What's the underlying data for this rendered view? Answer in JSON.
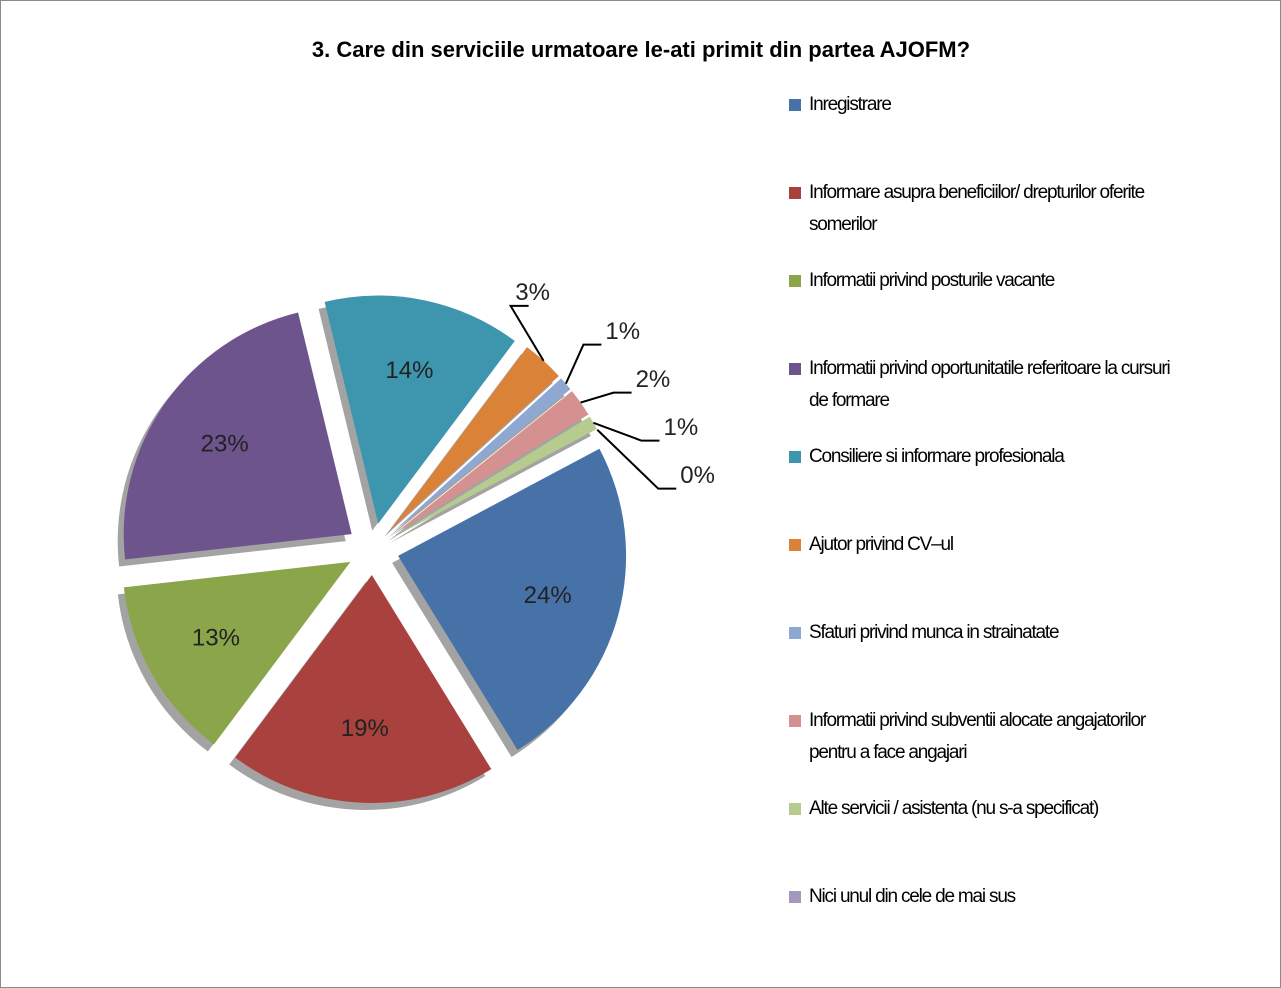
{
  "chart_data": {
    "type": "pie",
    "title": "3. Care din serviciile urmatoare le-ati primit din partea AJOFM?",
    "categories": [
      "Inregistrare",
      "Informare asupra beneficiilor/ drepturilor oferite somerilor",
      "Informatii privind posturile vacante",
      "Informatii privind oportunitatile referitoare la cursuri de formare",
      "Consiliere si informare profesionala",
      "Ajutor privind CV–ul",
      "Sfaturi privind munca in strainatate",
      "Informatii privind subventii alocate angajatorilor pentru a face angajari",
      "Alte servicii / asistenta (nu s-a specificat)",
      "Nici unul din cele de mai sus"
    ],
    "values": [
      24,
      19,
      13,
      23,
      14,
      3,
      1,
      2,
      1,
      0
    ],
    "value_labels": [
      "24%",
      "19%",
      "13%",
      "23%",
      "14%",
      "3%",
      "1%",
      "2%",
      "1%",
      "0%"
    ],
    "colors": [
      "#4672a8",
      "#a9423f",
      "#8aa54a",
      "#6e548d",
      "#3d96ae",
      "#da8237",
      "#8fa8d2",
      "#d49190",
      "#b6cc8f",
      "#a598bd"
    ],
    "legend": "right"
  }
}
